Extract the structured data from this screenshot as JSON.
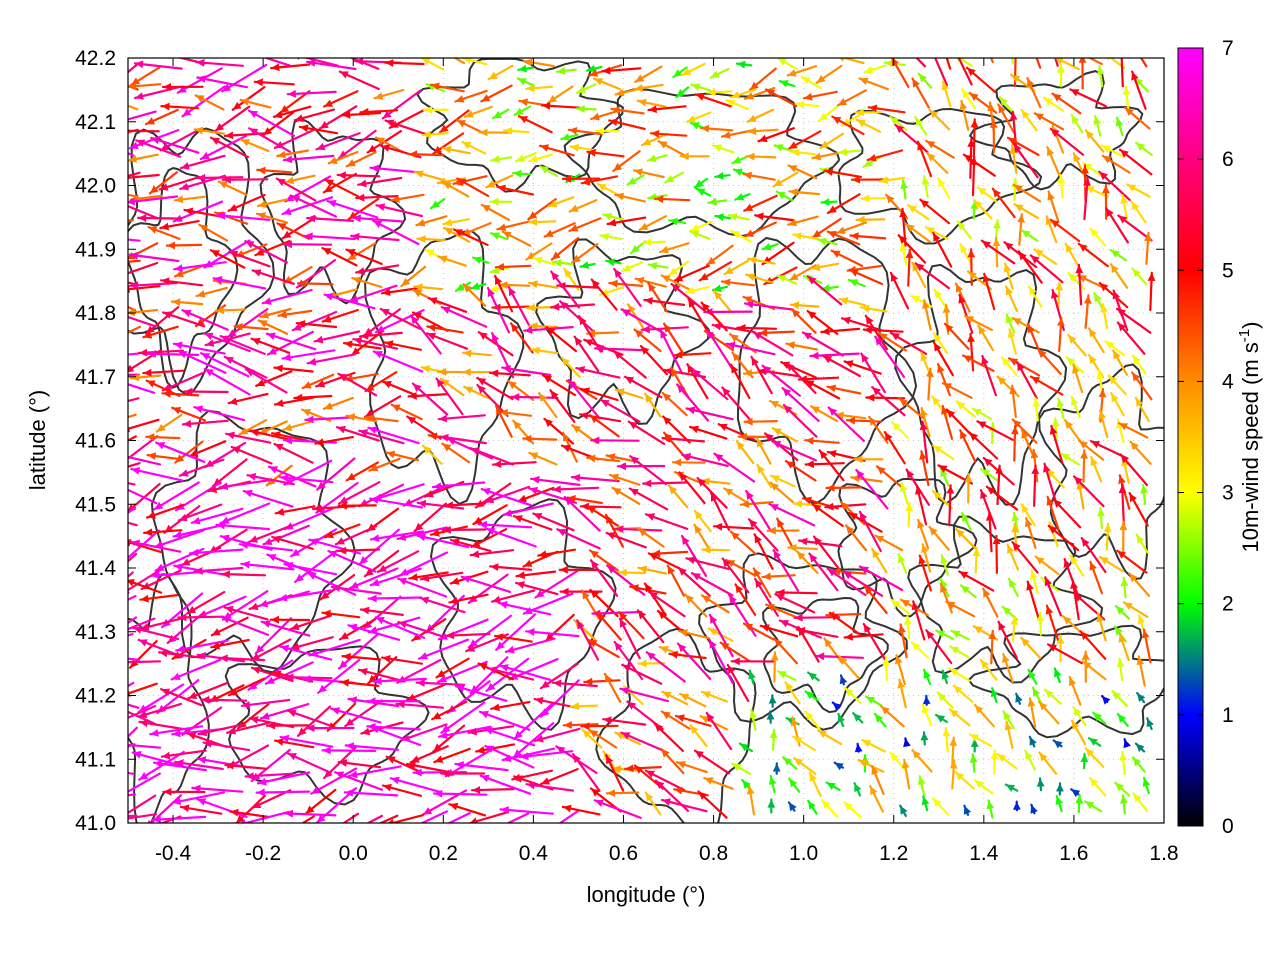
{
  "chart_data": {
    "type": "vector-field",
    "xlabel": "longitude (°)",
    "ylabel": "latitude (°)",
    "xlim": [
      -0.5,
      1.8
    ],
    "ylim": [
      41.0,
      42.2
    ],
    "xticks": [
      "-0.4",
      "-0.2",
      "0.0",
      "0.2",
      "0.4",
      "0.6",
      "0.8",
      "1.0",
      "1.2",
      "1.4",
      "1.6",
      "1.8"
    ],
    "xtick_values": [
      -0.4,
      -0.2,
      0.0,
      0.2,
      0.4,
      0.6,
      0.8,
      1.0,
      1.2,
      1.4,
      1.6,
      1.8
    ],
    "yticks": [
      "41.0",
      "41.1",
      "41.2",
      "41.3",
      "41.4",
      "41.5",
      "41.6",
      "41.7",
      "41.8",
      "41.9",
      "42.0",
      "42.1",
      "42.2"
    ],
    "ytick_values": [
      41.0,
      41.1,
      41.2,
      41.3,
      41.4,
      41.5,
      41.6,
      41.7,
      41.8,
      41.9,
      42.0,
      42.1,
      42.2
    ],
    "colorbar": {
      "label": "10m-wind speed (m s-1)",
      "label_main": "10m-wind speed (m s",
      "label_sup": "-1",
      "label_end": ")",
      "range": [
        0,
        7
      ],
      "ticks": [
        "0",
        "1",
        "2",
        "3",
        "4",
        "5",
        "6",
        "7"
      ],
      "palette": [
        "#000000",
        "#0000ff",
        "#00ff00",
        "#ffff00",
        "#ff8c00",
        "#ff0000",
        "#ff00ff"
      ]
    },
    "grid": true,
    "contour_color": "#333333",
    "wind_field_regions": [
      {
        "region": "south-west",
        "speed": 6.5,
        "direction_deg": 190
      },
      {
        "region": "west",
        "speed": 5.5,
        "direction_deg": 185
      },
      {
        "region": "centre",
        "speed": 5.0,
        "direction_deg": 150
      },
      {
        "region": "north",
        "speed": 3.5,
        "direction_deg": 185
      },
      {
        "region": "east",
        "speed": 4.0,
        "direction_deg": 120
      },
      {
        "region": "south-east",
        "speed": 2.5,
        "direction_deg": 120
      }
    ]
  }
}
